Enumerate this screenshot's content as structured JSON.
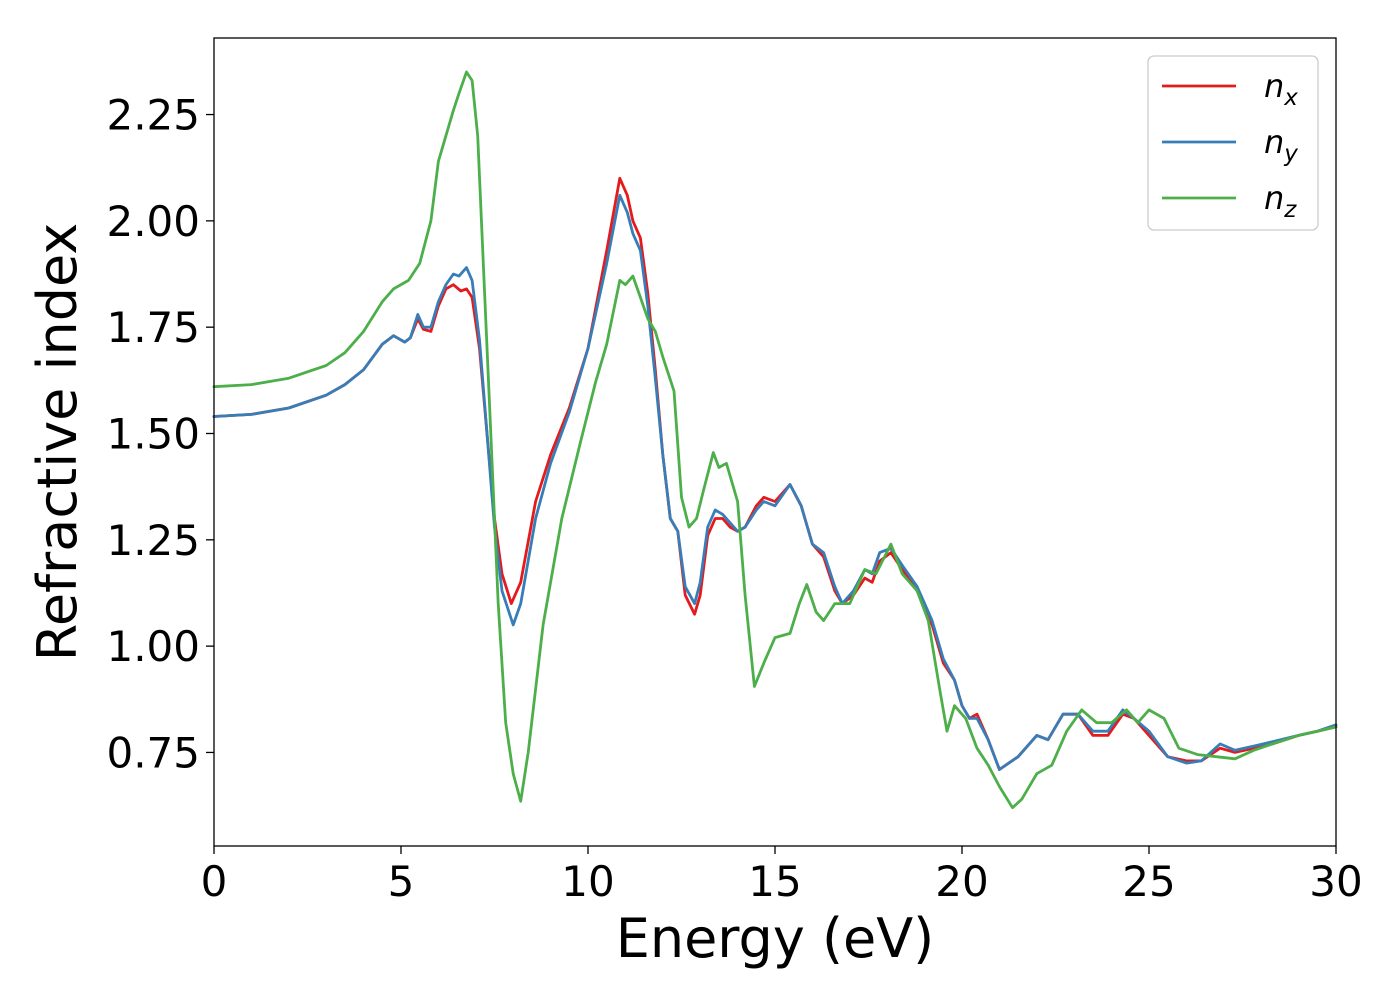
{
  "chart_data": {
    "type": "line",
    "title": "",
    "xlabel": "Energy (eV)",
    "ylabel": "Refractive index",
    "xlim": [
      0,
      30
    ],
    "ylim": [
      0.53,
      2.43
    ],
    "xticks": [
      0,
      5,
      10,
      15,
      20,
      25,
      30
    ],
    "xtick_labels": [
      "0",
      "5",
      "10",
      "15",
      "20",
      "25",
      "30"
    ],
    "yticks": [
      0.75,
      1.0,
      1.25,
      1.5,
      1.75,
      2.0,
      2.25
    ],
    "ytick_labels": [
      "0.75",
      "1.00",
      "1.25",
      "1.50",
      "1.75",
      "2.00",
      "2.25"
    ],
    "grid": false,
    "legend_position": "top-right",
    "series": [
      {
        "name": "n",
        "subscript": "x",
        "color": "#e41a1c",
        "points": [
          [
            0,
            1.54
          ],
          [
            1,
            1.545
          ],
          [
            2,
            1.56
          ],
          [
            3,
            1.59
          ],
          [
            3.5,
            1.615
          ],
          [
            4,
            1.65
          ],
          [
            4.5,
            1.71
          ],
          [
            4.8,
            1.73
          ],
          [
            5.1,
            1.715
          ],
          [
            5.25,
            1.725
          ],
          [
            5.45,
            1.77
          ],
          [
            5.6,
            1.745
          ],
          [
            5.8,
            1.74
          ],
          [
            6.0,
            1.8
          ],
          [
            6.2,
            1.84
          ],
          [
            6.4,
            1.85
          ],
          [
            6.6,
            1.835
          ],
          [
            6.75,
            1.84
          ],
          [
            6.9,
            1.82
          ],
          [
            7.1,
            1.7
          ],
          [
            7.3,
            1.5
          ],
          [
            7.5,
            1.3
          ],
          [
            7.7,
            1.17
          ],
          [
            7.95,
            1.1
          ],
          [
            8.2,
            1.15
          ],
          [
            8.6,
            1.34
          ],
          [
            9,
            1.45
          ],
          [
            9.5,
            1.56
          ],
          [
            10,
            1.7
          ],
          [
            10.5,
            1.93
          ],
          [
            10.85,
            2.1
          ],
          [
            11.05,
            2.06
          ],
          [
            11.2,
            2.0
          ],
          [
            11.4,
            1.96
          ],
          [
            11.6,
            1.83
          ],
          [
            11.8,
            1.65
          ],
          [
            12.0,
            1.45
          ],
          [
            12.2,
            1.3
          ],
          [
            12.4,
            1.27
          ],
          [
            12.6,
            1.12
          ],
          [
            12.85,
            1.075
          ],
          [
            13.0,
            1.12
          ],
          [
            13.2,
            1.26
          ],
          [
            13.4,
            1.3
          ],
          [
            13.6,
            1.3
          ],
          [
            13.8,
            1.28
          ],
          [
            14.0,
            1.27
          ],
          [
            14.2,
            1.28
          ],
          [
            14.5,
            1.33
          ],
          [
            14.7,
            1.35
          ],
          [
            15.0,
            1.34
          ],
          [
            15.4,
            1.38
          ],
          [
            15.7,
            1.33
          ],
          [
            16.0,
            1.24
          ],
          [
            16.3,
            1.21
          ],
          [
            16.6,
            1.13
          ],
          [
            16.8,
            1.1
          ],
          [
            17.1,
            1.12
          ],
          [
            17.4,
            1.16
          ],
          [
            17.6,
            1.15
          ],
          [
            17.8,
            1.2
          ],
          [
            18.1,
            1.22
          ],
          [
            18.4,
            1.18
          ],
          [
            18.8,
            1.13
          ],
          [
            19.2,
            1.05
          ],
          [
            19.5,
            0.96
          ],
          [
            19.8,
            0.92
          ],
          [
            20.0,
            0.86
          ],
          [
            20.2,
            0.83
          ],
          [
            20.4,
            0.84
          ],
          [
            20.7,
            0.78
          ],
          [
            21.0,
            0.71
          ],
          [
            21.5,
            0.74
          ],
          [
            22.0,
            0.79
          ],
          [
            22.3,
            0.78
          ],
          [
            22.7,
            0.84
          ],
          [
            23.1,
            0.84
          ],
          [
            23.5,
            0.79
          ],
          [
            23.9,
            0.79
          ],
          [
            24.3,
            0.84
          ],
          [
            24.6,
            0.83
          ],
          [
            25.0,
            0.79
          ],
          [
            25.5,
            0.74
          ],
          [
            26.0,
            0.73
          ],
          [
            26.4,
            0.73
          ],
          [
            26.9,
            0.76
          ],
          [
            27.3,
            0.75
          ],
          [
            27.8,
            0.76
          ],
          [
            28.3,
            0.77
          ],
          [
            29,
            0.79
          ],
          [
            29.5,
            0.8
          ],
          [
            30,
            0.81
          ]
        ]
      },
      {
        "name": "n",
        "subscript": "y",
        "color": "#377eb8",
        "points": [
          [
            0,
            1.54
          ],
          [
            1,
            1.545
          ],
          [
            2,
            1.56
          ],
          [
            3,
            1.59
          ],
          [
            3.5,
            1.615
          ],
          [
            4,
            1.65
          ],
          [
            4.5,
            1.71
          ],
          [
            4.8,
            1.73
          ],
          [
            5.1,
            1.715
          ],
          [
            5.25,
            1.725
          ],
          [
            5.45,
            1.78
          ],
          [
            5.6,
            1.75
          ],
          [
            5.8,
            1.75
          ],
          [
            6.0,
            1.81
          ],
          [
            6.2,
            1.85
          ],
          [
            6.4,
            1.875
          ],
          [
            6.55,
            1.87
          ],
          [
            6.75,
            1.89
          ],
          [
            6.9,
            1.86
          ],
          [
            7.1,
            1.72
          ],
          [
            7.3,
            1.5
          ],
          [
            7.5,
            1.28
          ],
          [
            7.7,
            1.13
          ],
          [
            8.0,
            1.05
          ],
          [
            8.2,
            1.1
          ],
          [
            8.6,
            1.3
          ],
          [
            9,
            1.43
          ],
          [
            9.5,
            1.55
          ],
          [
            10,
            1.7
          ],
          [
            10.5,
            1.9
          ],
          [
            10.85,
            2.06
          ],
          [
            11.05,
            2.02
          ],
          [
            11.2,
            1.97
          ],
          [
            11.4,
            1.93
          ],
          [
            11.6,
            1.8
          ],
          [
            11.8,
            1.63
          ],
          [
            12.0,
            1.45
          ],
          [
            12.2,
            1.3
          ],
          [
            12.4,
            1.27
          ],
          [
            12.6,
            1.14
          ],
          [
            12.85,
            1.1
          ],
          [
            13.0,
            1.15
          ],
          [
            13.2,
            1.28
          ],
          [
            13.4,
            1.32
          ],
          [
            13.6,
            1.31
          ],
          [
            13.8,
            1.29
          ],
          [
            14.0,
            1.27
          ],
          [
            14.2,
            1.28
          ],
          [
            14.5,
            1.32
          ],
          [
            14.7,
            1.34
          ],
          [
            15.0,
            1.33
          ],
          [
            15.4,
            1.38
          ],
          [
            15.7,
            1.33
          ],
          [
            16.0,
            1.24
          ],
          [
            16.3,
            1.22
          ],
          [
            16.6,
            1.14
          ],
          [
            16.8,
            1.1
          ],
          [
            17.1,
            1.13
          ],
          [
            17.4,
            1.18
          ],
          [
            17.6,
            1.17
          ],
          [
            17.8,
            1.22
          ],
          [
            18.1,
            1.23
          ],
          [
            18.4,
            1.19
          ],
          [
            18.8,
            1.14
          ],
          [
            19.2,
            1.06
          ],
          [
            19.5,
            0.97
          ],
          [
            19.8,
            0.92
          ],
          [
            20.0,
            0.86
          ],
          [
            20.2,
            0.83
          ],
          [
            20.4,
            0.83
          ],
          [
            20.7,
            0.78
          ],
          [
            21.0,
            0.71
          ],
          [
            21.5,
            0.74
          ],
          [
            22.0,
            0.79
          ],
          [
            22.3,
            0.78
          ],
          [
            22.7,
            0.84
          ],
          [
            23.1,
            0.84
          ],
          [
            23.5,
            0.8
          ],
          [
            23.9,
            0.8
          ],
          [
            24.3,
            0.85
          ],
          [
            24.6,
            0.83
          ],
          [
            25.0,
            0.8
          ],
          [
            25.5,
            0.74
          ],
          [
            26.0,
            0.725
          ],
          [
            26.4,
            0.73
          ],
          [
            26.9,
            0.77
          ],
          [
            27.3,
            0.755
          ],
          [
            27.8,
            0.765
          ],
          [
            28.3,
            0.775
          ],
          [
            29,
            0.79
          ],
          [
            29.5,
            0.8
          ],
          [
            30,
            0.815
          ]
        ]
      },
      {
        "name": "n",
        "subscript": "z",
        "color": "#4daf4a",
        "points": [
          [
            0,
            1.61
          ],
          [
            1,
            1.615
          ],
          [
            2,
            1.63
          ],
          [
            3,
            1.66
          ],
          [
            3.5,
            1.69
          ],
          [
            4,
            1.74
          ],
          [
            4.5,
            1.81
          ],
          [
            4.8,
            1.84
          ],
          [
            5.2,
            1.86
          ],
          [
            5.5,
            1.9
          ],
          [
            5.8,
            2.0
          ],
          [
            6.0,
            2.14
          ],
          [
            6.2,
            2.2
          ],
          [
            6.4,
            2.26
          ],
          [
            6.55,
            2.3
          ],
          [
            6.75,
            2.35
          ],
          [
            6.9,
            2.33
          ],
          [
            7.05,
            2.2
          ],
          [
            7.2,
            1.9
          ],
          [
            7.4,
            1.5
          ],
          [
            7.6,
            1.1
          ],
          [
            7.8,
            0.82
          ],
          [
            8.0,
            0.7
          ],
          [
            8.2,
            0.635
          ],
          [
            8.4,
            0.75
          ],
          [
            8.8,
            1.05
          ],
          [
            9.3,
            1.3
          ],
          [
            9.8,
            1.48
          ],
          [
            10.2,
            1.62
          ],
          [
            10.5,
            1.71
          ],
          [
            10.85,
            1.86
          ],
          [
            11.0,
            1.85
          ],
          [
            11.2,
            1.87
          ],
          [
            11.4,
            1.82
          ],
          [
            11.6,
            1.77
          ],
          [
            11.8,
            1.74
          ],
          [
            12.0,
            1.68
          ],
          [
            12.3,
            1.6
          ],
          [
            12.5,
            1.35
          ],
          [
            12.7,
            1.28
          ],
          [
            12.9,
            1.3
          ],
          [
            13.1,
            1.37
          ],
          [
            13.35,
            1.455
          ],
          [
            13.5,
            1.42
          ],
          [
            13.7,
            1.43
          ],
          [
            14.0,
            1.34
          ],
          [
            14.2,
            1.12
          ],
          [
            14.45,
            0.905
          ],
          [
            14.7,
            0.96
          ],
          [
            15.0,
            1.02
          ],
          [
            15.4,
            1.03
          ],
          [
            15.65,
            1.1
          ],
          [
            15.85,
            1.145
          ],
          [
            16.1,
            1.08
          ],
          [
            16.3,
            1.06
          ],
          [
            16.6,
            1.1
          ],
          [
            17.0,
            1.1
          ],
          [
            17.4,
            1.18
          ],
          [
            17.7,
            1.17
          ],
          [
            18.1,
            1.24
          ],
          [
            18.4,
            1.17
          ],
          [
            18.8,
            1.13
          ],
          [
            19.1,
            1.06
          ],
          [
            19.4,
            0.9
          ],
          [
            19.6,
            0.8
          ],
          [
            19.8,
            0.86
          ],
          [
            20.1,
            0.83
          ],
          [
            20.4,
            0.76
          ],
          [
            20.7,
            0.72
          ],
          [
            21.0,
            0.67
          ],
          [
            21.35,
            0.62
          ],
          [
            21.6,
            0.64
          ],
          [
            22.0,
            0.7
          ],
          [
            22.4,
            0.72
          ],
          [
            22.8,
            0.8
          ],
          [
            23.2,
            0.85
          ],
          [
            23.6,
            0.82
          ],
          [
            24.0,
            0.82
          ],
          [
            24.4,
            0.85
          ],
          [
            24.7,
            0.82
          ],
          [
            25.0,
            0.85
          ],
          [
            25.4,
            0.83
          ],
          [
            25.8,
            0.76
          ],
          [
            26.3,
            0.745
          ],
          [
            26.8,
            0.74
          ],
          [
            27.3,
            0.735
          ],
          [
            27.8,
            0.755
          ],
          [
            28.3,
            0.77
          ],
          [
            29,
            0.79
          ],
          [
            29.5,
            0.8
          ],
          [
            30,
            0.81
          ]
        ]
      }
    ]
  }
}
